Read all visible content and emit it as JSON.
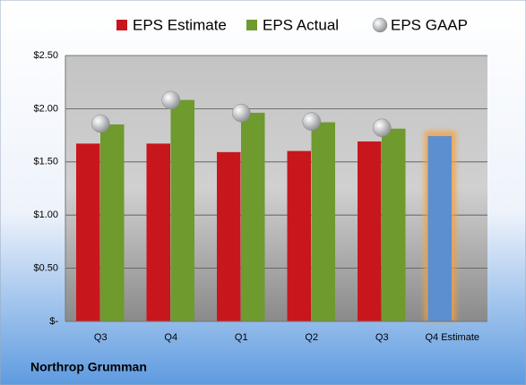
{
  "chart_data": {
    "type": "bar",
    "title": "Northrop Grumman",
    "categories": [
      "Q3",
      "Q4",
      "Q1",
      "Q2",
      "Q3",
      "Q4 Estimate"
    ],
    "series": [
      {
        "name": "EPS Estimate",
        "color": "#c8161d",
        "highlight_color": "#5b8fd0",
        "values": [
          1.67,
          1.67,
          1.59,
          1.6,
          1.69,
          1.74
        ]
      },
      {
        "name": "EPS Actual",
        "color": "#6f9a2e",
        "values": [
          1.85,
          2.08,
          1.96,
          1.87,
          1.81,
          null
        ]
      },
      {
        "name": "EPS GAAP",
        "color": "#a0a4a8",
        "marker": "circle",
        "values": [
          1.86,
          2.08,
          1.96,
          1.88,
          1.82,
          null
        ]
      }
    ],
    "ylim": [
      0,
      2.5
    ],
    "yticks": [
      {
        "value": 0,
        "label": "$-"
      },
      {
        "value": 0.5,
        "label": "$0.50"
      },
      {
        "value": 1,
        "label": "$1.00"
      },
      {
        "value": 1.5,
        "label": "$1.50"
      },
      {
        "value": 2,
        "label": "$2.00"
      },
      {
        "value": 2.5,
        "label": "$2.50"
      }
    ],
    "grid": true
  }
}
